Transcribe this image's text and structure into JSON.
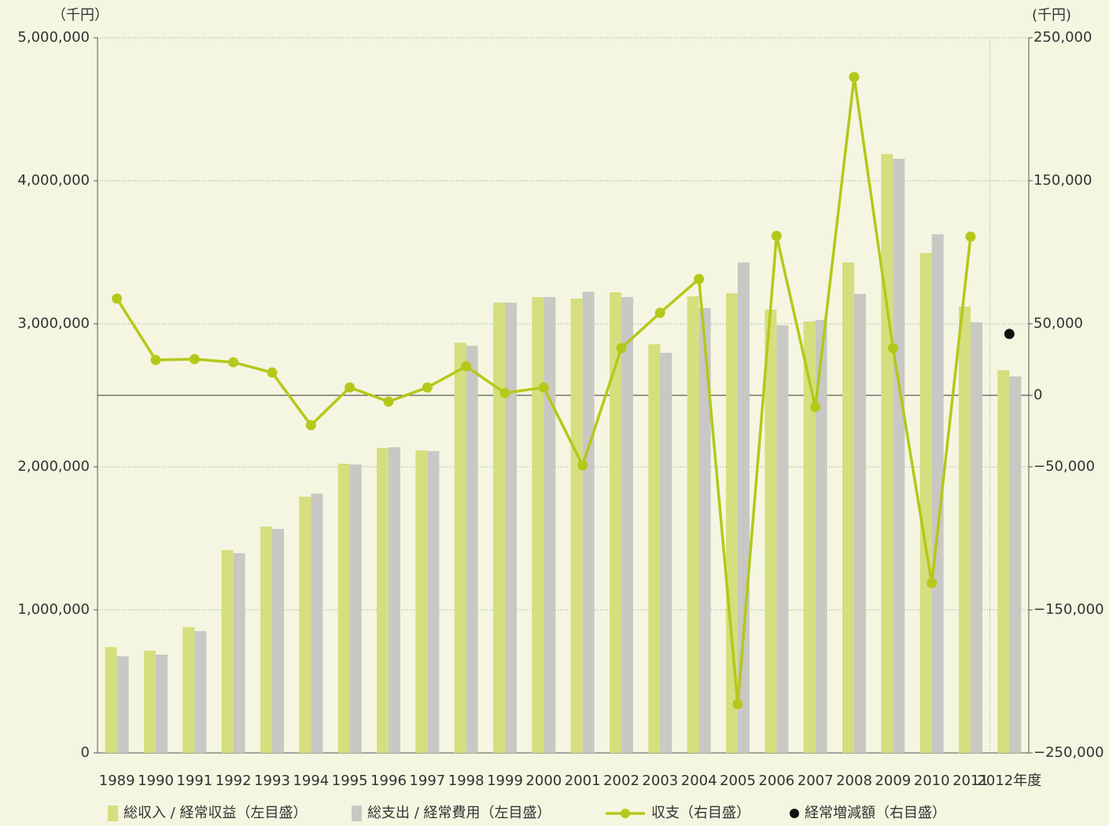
{
  "chart_data": {
    "type": "bar",
    "y_unit_label": "（千円）",
    "y2_unit_label": "(千円)",
    "categories": [
      "1989",
      "1990",
      "1991",
      "1992",
      "1993",
      "1994",
      "1995",
      "1996",
      "1997",
      "1998",
      "1999",
      "2000",
      "2001",
      "2002",
      "2003",
      "2004",
      "2005",
      "2006",
      "2007",
      "2008",
      "2009",
      "2010",
      "2011",
      "2012年度"
    ],
    "series": [
      {
        "name": "総収入 / 経常収益（左目盛）",
        "type": "bar",
        "axis": "y",
        "color": "#d5df7e",
        "values": [
          740000,
          714000,
          879000,
          1418000,
          1582000,
          1791000,
          2022000,
          2132000,
          2115000,
          2868000,
          3148000,
          3187000,
          3176000,
          3220000,
          2857000,
          3192000,
          3214000,
          3099000,
          3016000,
          3429000,
          4187000,
          3495000,
          3121000,
          2676000
        ]
      },
      {
        "name": "総支出 / 経常費用（左目盛）",
        "type": "bar",
        "axis": "y",
        "color": "#c8c8c4",
        "values": [
          676000,
          687000,
          852000,
          1396000,
          1566000,
          1813000,
          2016000,
          2137000,
          2110000,
          2846000,
          3148000,
          3187000,
          3225000,
          3187000,
          2797000,
          3110000,
          3429000,
          2989000,
          3027000,
          3209000,
          4154000,
          3626000,
          3011000,
          2632000
        ]
      },
      {
        "name": "収支（右目盛）",
        "type": "line",
        "axis": "y2",
        "color": "#b5c81a",
        "values": [
          67600,
          24700,
          25300,
          23100,
          15900,
          -20900,
          5500,
          -4400,
          5500,
          20300,
          1600,
          5500,
          -48900,
          33000,
          57700,
          81300,
          -215900,
          111500,
          -8200,
          222500,
          33000,
          -131300,
          111000,
          null
        ]
      },
      {
        "name": "経常増減額（右目盛）",
        "type": "scatter",
        "axis": "y2",
        "color": "#111111",
        "values": [
          null,
          null,
          null,
          null,
          null,
          null,
          null,
          null,
          null,
          null,
          null,
          null,
          null,
          null,
          null,
          null,
          null,
          null,
          null,
          null,
          null,
          null,
          null,
          42900
        ]
      }
    ],
    "ylim": [
      0,
      5000000
    ],
    "yticks": [
      0,
      {
        "value": 1000000,
        "label": "1,000,000"
      },
      {
        "value": 2000000,
        "label": "2,000,000"
      },
      {
        "value": 3000000,
        "label": "3,000,000"
      },
      {
        "value": 4000000,
        "label": "4,000,000"
      },
      {
        "value": 5000000,
        "label": "5,000,000"
      }
    ],
    "y2lim": [
      -250000,
      250000
    ],
    "y2ticks": [
      {
        "value": -250000,
        "label": "−250,000"
      },
      {
        "value": -150000,
        "label": "−150,000"
      },
      {
        "value": -50000,
        "label": "−50,000"
      },
      0,
      {
        "value": 50000,
        "label": "50,000"
      },
      {
        "value": 150000,
        "label": "150,000"
      },
      {
        "value": 250000,
        "label": "250,000"
      }
    ],
    "grid": true,
    "zero_line": true,
    "legend": "bottom"
  }
}
